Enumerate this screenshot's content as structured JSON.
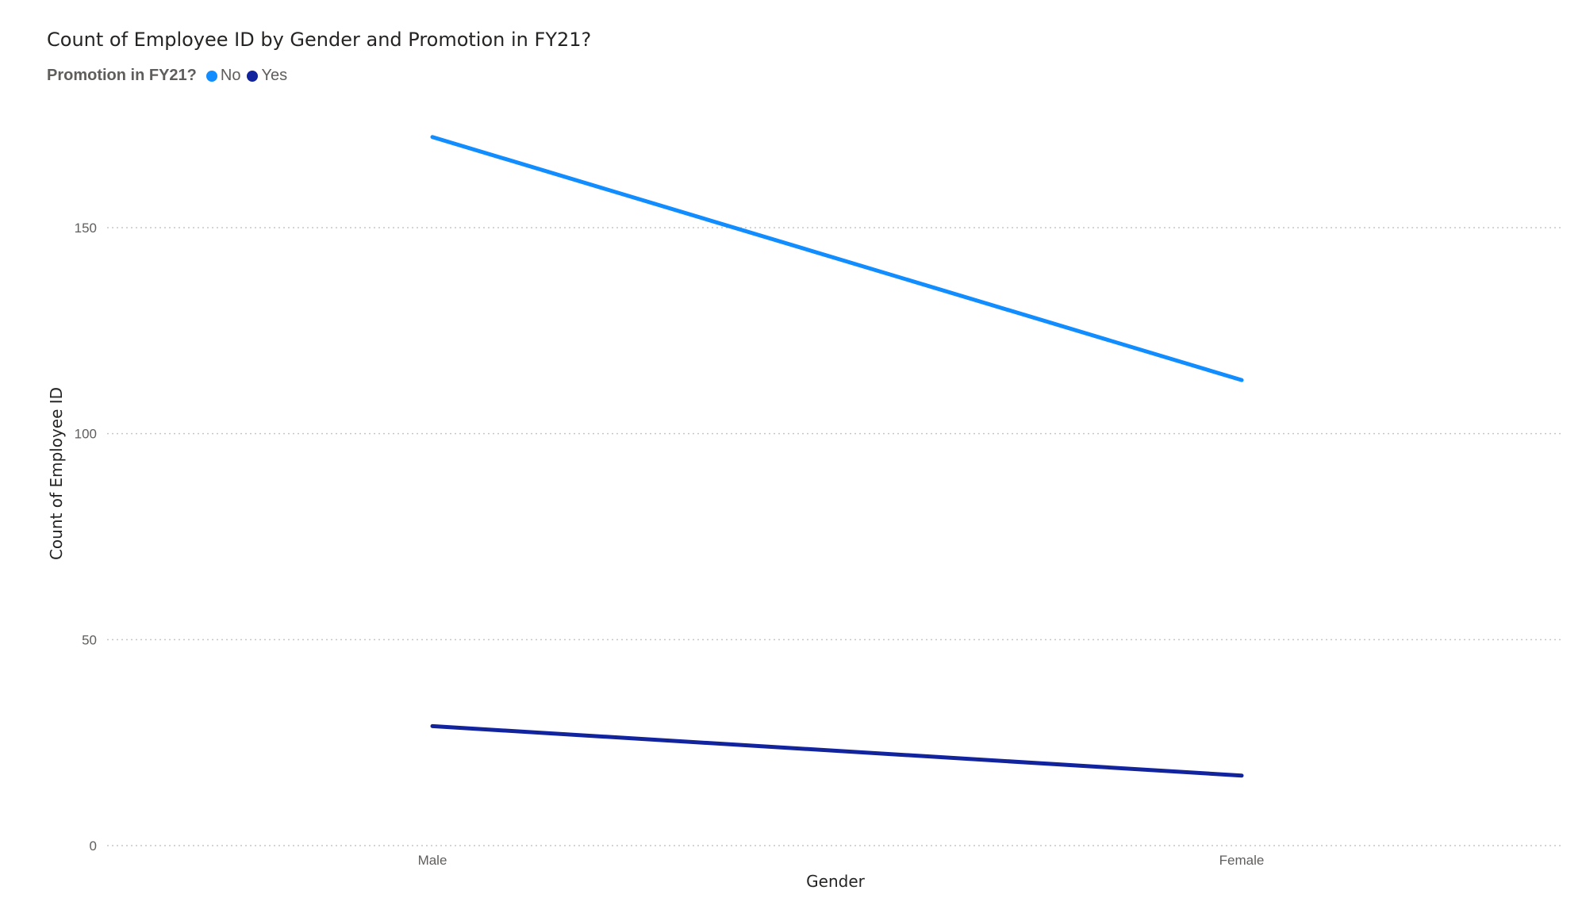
{
  "chart_data": {
    "type": "line",
    "title": "Count of Employee ID by Gender and Promotion in FY21?",
    "legend_title": "Promotion in FY21?",
    "legend_position": "top-left",
    "xlabel": "Gender",
    "ylabel": "Count of Employee ID",
    "categories": [
      "Male",
      "Female"
    ],
    "ylim": [
      0,
      175
    ],
    "yticks": [
      0,
      50,
      100,
      150
    ],
    "grid": true,
    "series": [
      {
        "name": "No",
        "color": "#118DFF",
        "values": [
          172,
          113
        ]
      },
      {
        "name": "Yes",
        "color": "#12239E",
        "values": [
          29,
          17
        ]
      }
    ]
  }
}
